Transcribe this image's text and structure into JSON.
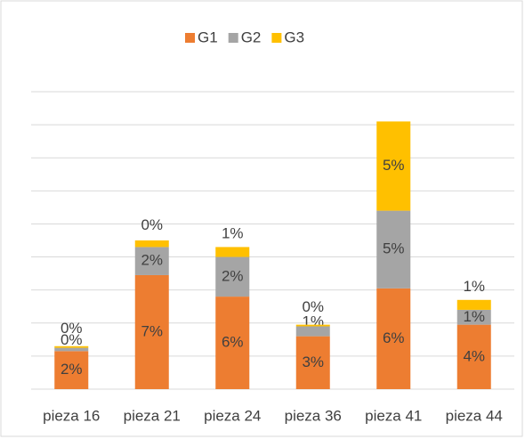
{
  "chart_data": {
    "type": "stacked_bar",
    "categories": [
      "pieza 16",
      "pieza 21",
      "pieza 24",
      "pieza 36",
      "pieza 41",
      "pieza 44"
    ],
    "series": [
      {
        "name": "G1",
        "color": "#ed7d31",
        "values": [
          2.3,
          6.9,
          5.6,
          3.2,
          6.1,
          3.9
        ],
        "value_labels": [
          "2%",
          "7%",
          "6%",
          "3%",
          "6%",
          "4%"
        ]
      },
      {
        "name": "G2",
        "color": "#a5a5a5",
        "values": [
          0.2,
          1.7,
          2.4,
          0.6,
          4.7,
          0.9
        ],
        "value_labels": [
          "0%",
          "2%",
          "2%",
          "1%",
          "5%",
          "1%"
        ]
      },
      {
        "name": "G3",
        "color": "#ffc000",
        "values": [
          0.1,
          0.4,
          0.6,
          0.1,
          5.4,
          0.6
        ],
        "value_labels": [
          "0%",
          "0%",
          "1%",
          "0%",
          "5%",
          "1%"
        ]
      }
    ],
    "ylim": [
      0,
      18
    ],
    "yticks": [
      0,
      2,
      4,
      6,
      8,
      10,
      12,
      14,
      16,
      18
    ],
    "grid": true,
    "legend": "top"
  }
}
